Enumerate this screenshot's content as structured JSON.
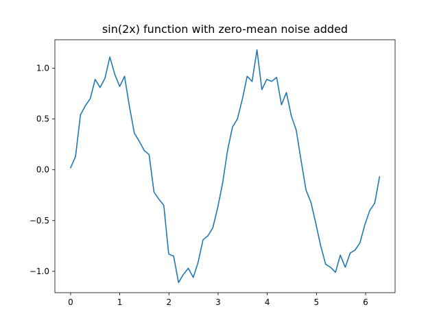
{
  "chart_data": {
    "type": "line",
    "title": "sin(2x) function with zero-mean noise added",
    "xlabel": "",
    "ylabel": "",
    "xlim": [
      -0.32,
      6.6
    ],
    "ylim": [
      -1.21,
      1.28
    ],
    "grid": false,
    "x_ticks": [
      0,
      1,
      2,
      3,
      4,
      5,
      6
    ],
    "x_tick_labels": [
      "0",
      "1",
      "2",
      "3",
      "4",
      "5",
      "6"
    ],
    "y_ticks": [
      1.0,
      0.5,
      0.0,
      -0.5,
      -1.0
    ],
    "y_tick_labels": [
      "1.0",
      "0.5",
      "0.0",
      "−0.5",
      "−1.0"
    ],
    "series": [
      {
        "color": "#1f77b4",
        "x": [
          0.0,
          0.1,
          0.2,
          0.299,
          0.399,
          0.499,
          0.599,
          0.698,
          0.798,
          0.898,
          0.998,
          1.097,
          1.197,
          1.297,
          1.397,
          1.496,
          1.596,
          1.696,
          1.796,
          1.895,
          1.995,
          2.095,
          2.195,
          2.294,
          2.394,
          2.494,
          2.594,
          2.693,
          2.793,
          2.893,
          2.993,
          3.092,
          3.192,
          3.292,
          3.392,
          3.491,
          3.591,
          3.691,
          3.791,
          3.89,
          3.99,
          4.09,
          4.19,
          4.289,
          4.389,
          4.489,
          4.589,
          4.688,
          4.788,
          4.888,
          4.988,
          5.087,
          5.187,
          5.287,
          5.387,
          5.486,
          5.586,
          5.686,
          5.786,
          5.885,
          5.985,
          6.085,
          6.185,
          6.283
        ],
        "y": [
          0.02,
          0.13,
          0.54,
          0.63,
          0.7,
          0.89,
          0.81,
          0.9,
          1.11,
          0.94,
          0.82,
          0.92,
          0.62,
          0.36,
          0.28,
          0.19,
          0.15,
          -0.22,
          -0.29,
          -0.35,
          -0.83,
          -0.85,
          -1.11,
          -1.03,
          -0.97,
          -1.06,
          -0.91,
          -0.69,
          -0.65,
          -0.57,
          -0.37,
          -0.13,
          0.19,
          0.42,
          0.5,
          0.69,
          0.92,
          0.87,
          1.18,
          0.79,
          0.89,
          0.87,
          0.91,
          0.64,
          0.76,
          0.53,
          0.39,
          0.09,
          -0.2,
          -0.32,
          -0.53,
          -0.75,
          -0.93,
          -0.96,
          -1.01,
          -0.84,
          -0.96,
          -0.82,
          -0.79,
          -0.72,
          -0.54,
          -0.4,
          -0.33,
          -0.07
        ]
      }
    ]
  }
}
